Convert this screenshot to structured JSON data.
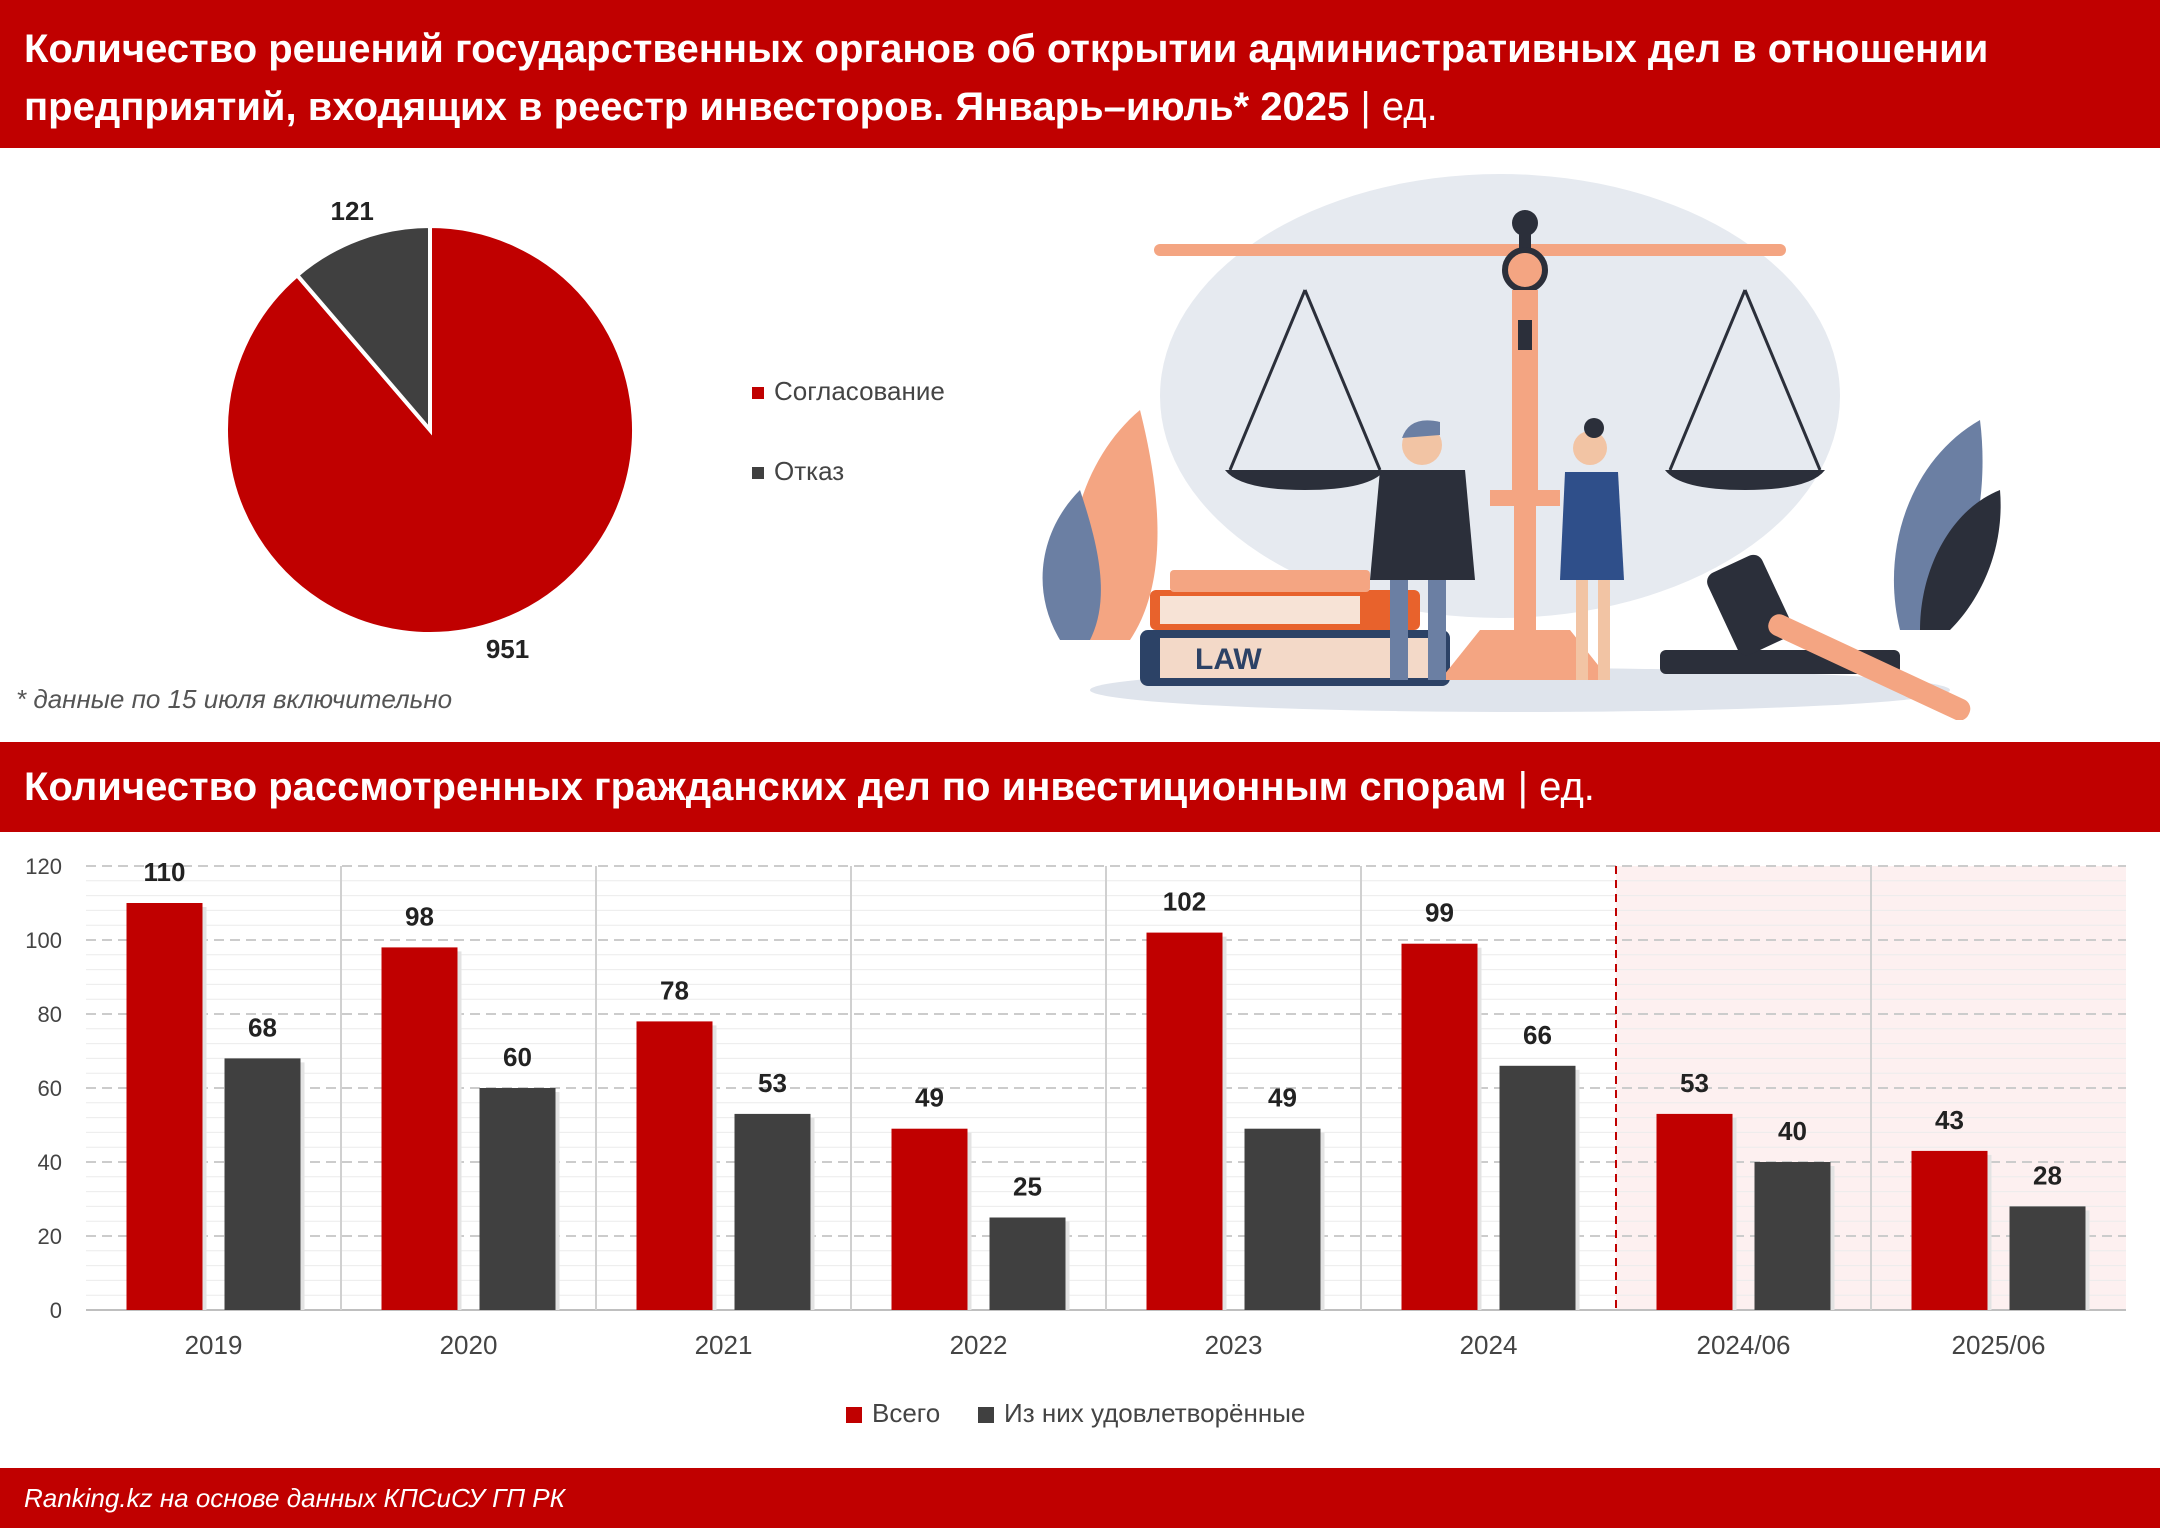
{
  "header": {
    "title": "Количество решений государственных органов об открытии административных дел в отношении предприятий, входящих в реестр инвесторов. Январь–июль* 2025",
    "unit": "| ед."
  },
  "footnote": "* данные по 15 июля включительно",
  "illustration": {
    "label": "LAW"
  },
  "section2": {
    "title": "Количество рассмотренных гражданских дел по инвестиционным спорам",
    "unit": "| ед."
  },
  "source": "Ranking.kz на основе данных КПСиСУ ГП РК",
  "colors": {
    "brand": "#c00000",
    "dark": "#404040",
    "highlight_bg": "#fdf0f0"
  },
  "chart_data": [
    {
      "type": "pie",
      "title": "",
      "labels": [
        "Согласование",
        "Отказ"
      ],
      "values": [
        951,
        121
      ],
      "colors": [
        "#c00000",
        "#404040"
      ],
      "legend": "right"
    },
    {
      "type": "bar",
      "title": "",
      "categories": [
        "2019",
        "2020",
        "2021",
        "2022",
        "2023",
        "2024",
        "2024/06",
        "2025/06"
      ],
      "series": [
        {
          "name": "Всего",
          "color": "#c00000",
          "values": [
            110,
            98,
            78,
            49,
            102,
            99,
            53,
            43
          ]
        },
        {
          "name": "Из них удовлетворённые",
          "color": "#404040",
          "values": [
            68,
            60,
            53,
            25,
            49,
            66,
            40,
            28
          ]
        }
      ],
      "ylim": [
        0,
        120
      ],
      "yticks": [
        0,
        20,
        40,
        60,
        80,
        100,
        120
      ],
      "grid": true,
      "highlight_categories": [
        "2024/06",
        "2025/06"
      ],
      "legend": "bottom"
    }
  ]
}
